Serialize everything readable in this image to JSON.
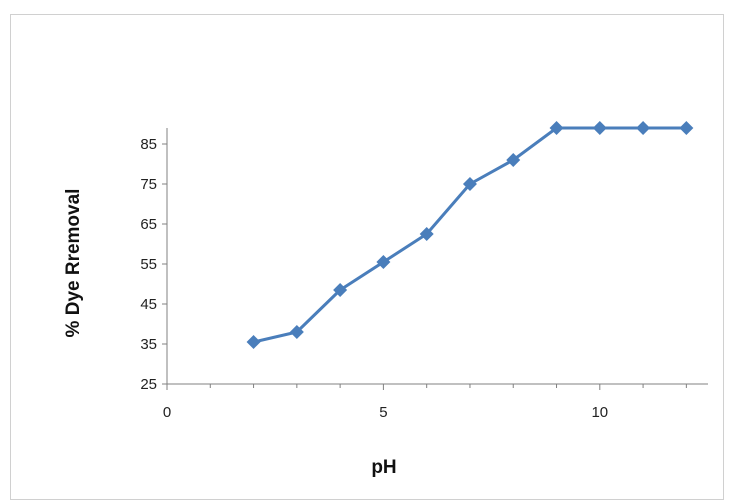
{
  "chart_data": {
    "type": "line",
    "title": "",
    "xlabel": "pH",
    "ylabel": "% Dye Rremoval",
    "xlim": [
      0,
      12.5
    ],
    "ylim": [
      25,
      89
    ],
    "xticks": [
      0,
      5,
      10
    ],
    "yticks": [
      25,
      35,
      45,
      55,
      65,
      75,
      85
    ],
    "grid": false,
    "legend": "none",
    "series": [
      {
        "color": "#4a7ebb",
        "marker": "diamond",
        "x": [
          2,
          3,
          4,
          5,
          6,
          7,
          8,
          9,
          10,
          11,
          12
        ],
        "y": [
          35.5,
          38,
          48.5,
          55.5,
          62.5,
          75,
          81,
          89,
          89,
          89,
          89
        ]
      }
    ]
  }
}
